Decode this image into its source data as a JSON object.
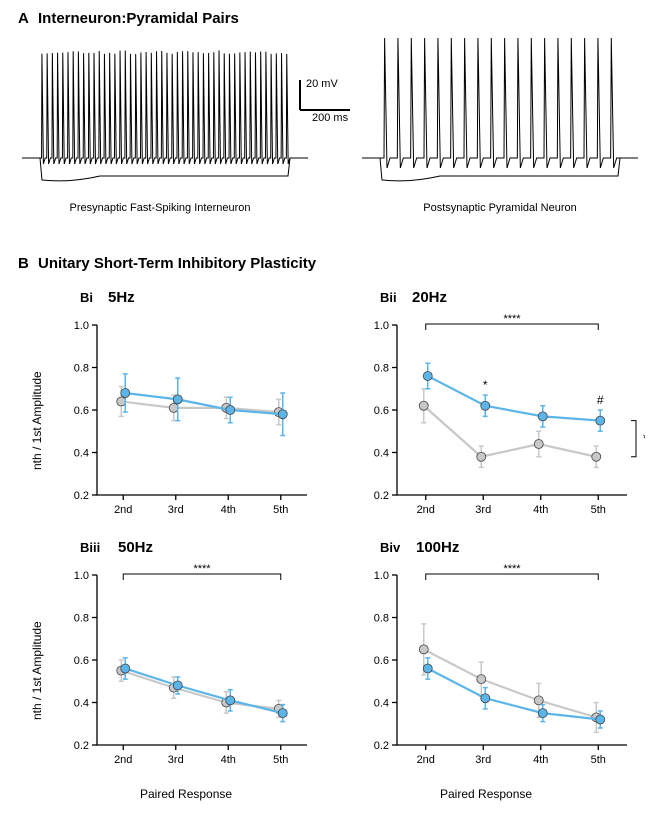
{
  "panelA": {
    "label": "A",
    "title": "Interneuron:Pyramidal Pairs",
    "left_caption": "Presynaptic Fast-Spiking Interneuron",
    "right_caption": "Postsynaptic Pyramidal Neuron",
    "scale_v": "20 mV",
    "scale_h": "200 ms"
  },
  "panelB": {
    "label": "B",
    "title": "Unitary Short-Term Inhibitory Plasticity",
    "ylabel": "nth / 1st Amplitude",
    "xlabel": "Paired Response",
    "xticks": [
      "2nd",
      "3rd",
      "4th",
      "5th"
    ],
    "yticks": [
      "0.2",
      "0.4",
      "0.6",
      "0.8",
      "1.0"
    ],
    "ylim": [
      0.2,
      1.0
    ],
    "charts": {
      "Bi": {
        "label": "Bi",
        "title": "5Hz",
        "blue": {
          "y": [
            0.68,
            0.65,
            0.6,
            0.58
          ],
          "err": [
            0.09,
            0.1,
            0.06,
            0.1
          ]
        },
        "gray": {
          "y": [
            0.64,
            0.61,
            0.61,
            0.59
          ],
          "err": [
            0.07,
            0.06,
            0.05,
            0.06
          ]
        },
        "sig_bracket": null
      },
      "Bii": {
        "label": "Bii",
        "title": "20Hz",
        "blue": {
          "y": [
            0.76,
            0.62,
            0.57,
            0.55
          ],
          "err": [
            0.06,
            0.05,
            0.05,
            0.05
          ]
        },
        "gray": {
          "y": [
            0.62,
            0.38,
            0.44,
            0.38
          ],
          "err": [
            0.08,
            0.05,
            0.06,
            0.05
          ]
        },
        "sig_bracket": "****",
        "point_sig": {
          "3rd": "*",
          "5th": "#"
        },
        "group_sig": "*"
      },
      "Biii": {
        "label": "Biii",
        "title": "50Hz",
        "blue": {
          "y": [
            0.56,
            0.48,
            0.41,
            0.35
          ],
          "err": [
            0.05,
            0.04,
            0.05,
            0.04
          ]
        },
        "gray": {
          "y": [
            0.55,
            0.47,
            0.4,
            0.37
          ],
          "err": [
            0.05,
            0.05,
            0.05,
            0.04
          ]
        },
        "sig_bracket": "****"
      },
      "Biv": {
        "label": "Biv",
        "title": "100Hz",
        "blue": {
          "y": [
            0.56,
            0.42,
            0.35,
            0.32
          ],
          "err": [
            0.05,
            0.05,
            0.04,
            0.04
          ]
        },
        "gray": {
          "y": [
            0.65,
            0.51,
            0.41,
            0.33
          ],
          "err": [
            0.12,
            0.08,
            0.08,
            0.07
          ]
        },
        "sig_bracket": "****"
      }
    },
    "colors": {
      "blue_stroke": "#5bb5e8",
      "blue_fill": "#5bb5e8",
      "gray_stroke": "#c8c8c8",
      "gray_fill": "#c8c8c8",
      "axis": "#000000",
      "marker_edge": "#444444"
    },
    "style": {
      "line_width": 2.2,
      "marker_r": 4.5,
      "err_cap": 5
    }
  }
}
